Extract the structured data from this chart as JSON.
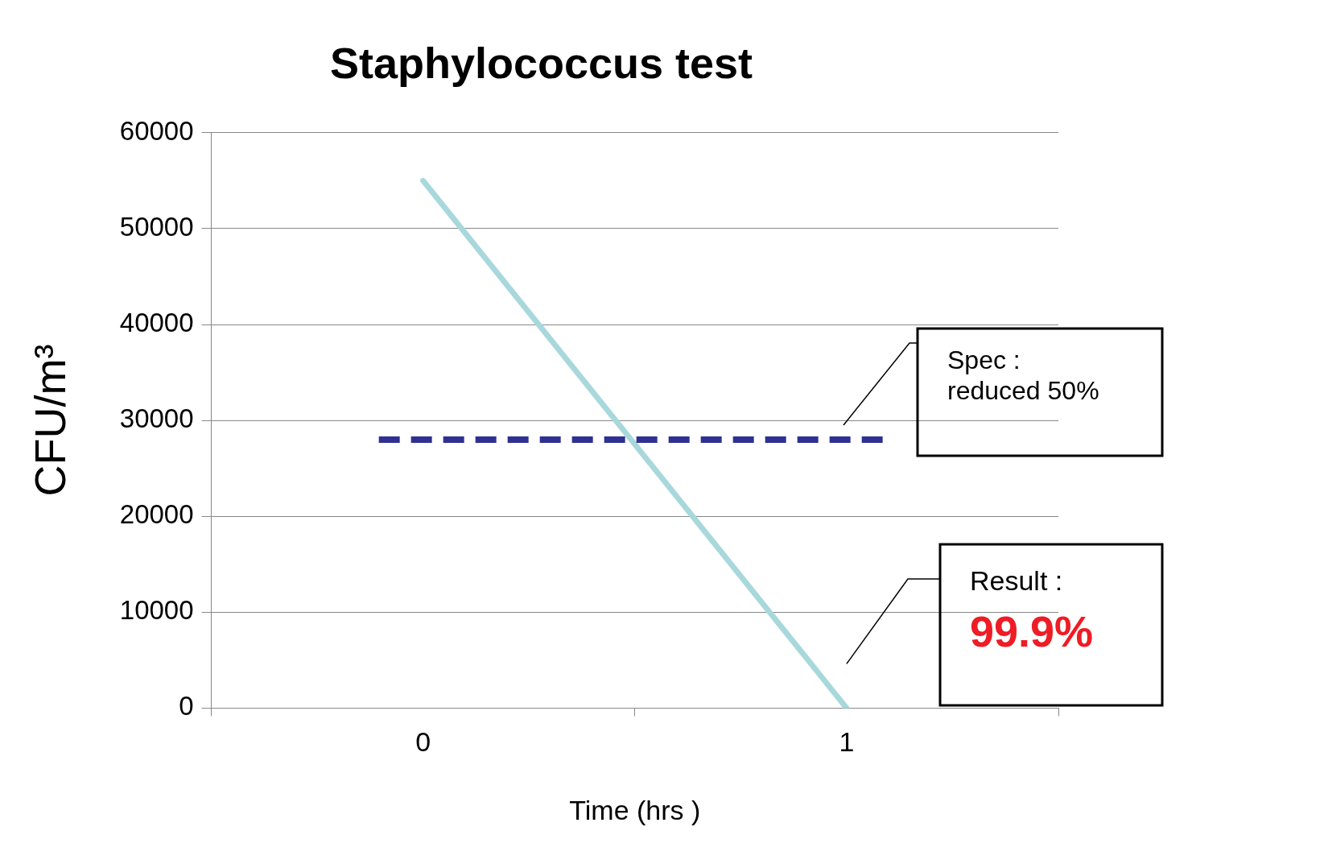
{
  "chart_data": {
    "type": "line",
    "title": "Staphylococcus test",
    "xlabel": "Time (hrs )",
    "ylabel": "CFU/m³",
    "categories": [
      "0",
      "1"
    ],
    "series": [
      {
        "color": "#a8d8dc",
        "values": [
          55000,
          0
        ]
      }
    ],
    "ylim": [
      0,
      60000
    ],
    "yticks": [
      0,
      10000,
      20000,
      30000,
      40000,
      50000,
      60000
    ],
    "grid": "y",
    "marker": "none",
    "line_style": "solid",
    "legend": false,
    "ref_lines": [
      {
        "axis": "y",
        "value": 28000,
        "label": "Spec :\nreduced 50%",
        "color": "#2e3192",
        "line_style": "dashed"
      }
    ],
    "annotations": [
      "Result :",
      "99.9%"
    ]
  }
}
